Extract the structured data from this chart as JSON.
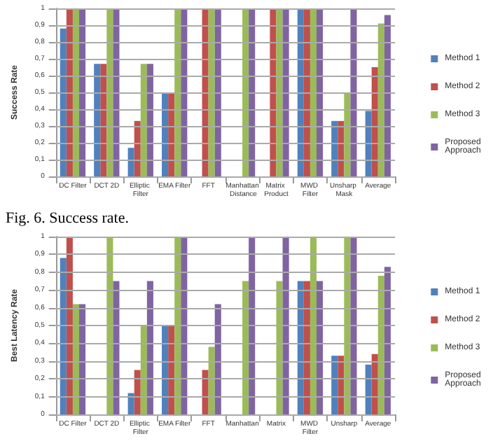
{
  "chart_data": [
    {
      "type": "bar",
      "ylabel": "Success Rate",
      "annotations": [
        "Fig. 6. Success rate."
      ],
      "categories": [
        "DC Filter",
        "DCT 2D",
        "Elliptic Filter",
        "EMA Filter",
        "FFT",
        "Manhattan Distance",
        "Matrix Product",
        "MWD Filter",
        "Unsharp Mask",
        "Average"
      ],
      "series": [
        {
          "name": "Method 1",
          "color": "#4f81bd",
          "values": [
            0.88,
            0.67,
            0.17,
            0.5,
            0,
            0,
            0,
            1,
            0.33,
            0.39
          ]
        },
        {
          "name": "Method 2",
          "color": "#c0504d",
          "values": [
            1,
            0.67,
            0.33,
            0.5,
            1,
            0,
            1,
            1,
            0.33,
            0.65
          ]
        },
        {
          "name": "Method 3",
          "color": "#9bbb59",
          "values": [
            1,
            1,
            0.67,
            1,
            1,
            1,
            1,
            1,
            0.5,
            0.91
          ]
        },
        {
          "name": "Proposed Approach",
          "color": "#8064a2",
          "values": [
            1,
            1,
            0.67,
            1,
            1,
            1,
            1,
            1,
            1,
            0.96
          ]
        }
      ],
      "ylim": [
        0,
        1
      ],
      "yticks": [
        {
          "value": 0,
          "label": "0"
        },
        {
          "value": 0.1,
          "label": "0,1"
        },
        {
          "value": 0.2,
          "label": "0,2"
        },
        {
          "value": 0.3,
          "label": "0,3"
        },
        {
          "value": 0.4,
          "label": "0,4"
        },
        {
          "value": 0.5,
          "label": "0,5"
        },
        {
          "value": 0.6,
          "label": "0,6"
        },
        {
          "value": 0.7,
          "label": "0,7"
        },
        {
          "value": 0.8,
          "label": "0,8"
        },
        {
          "value": 0.9,
          "label": "0,9"
        },
        {
          "value": 1,
          "label": "1"
        }
      ],
      "grid": "y",
      "legend": "right"
    },
    {
      "type": "bar",
      "ylabel": "Best Latency Rate",
      "categories": [
        "DC Filter",
        "DCT 2D",
        "Elliptic Filter",
        "EMA Filter",
        "FFT",
        "Manhattan",
        "Matrix",
        "MWD Filter",
        "Unsharp",
        "Average"
      ],
      "series": [
        {
          "name": "Method 1",
          "color": "#4f81bd",
          "values": [
            0.88,
            0,
            0.12,
            0.5,
            0,
            0,
            0,
            0.75,
            0.33,
            0.28
          ]
        },
        {
          "name": "Method 2",
          "color": "#c0504d",
          "values": [
            1,
            0,
            0.25,
            0.5,
            0.25,
            0,
            0,
            0.75,
            0.33,
            0.34
          ]
        },
        {
          "name": "Method 3",
          "color": "#9bbb59",
          "values": [
            0.62,
            1,
            0.5,
            1,
            0.38,
            0.75,
            0.75,
            1,
            1,
            0.78
          ]
        },
        {
          "name": "Proposed Approach",
          "color": "#8064a2",
          "values": [
            0.62,
            0.75,
            0.75,
            1,
            0.62,
            1,
            1,
            0.75,
            1,
            0.83
          ]
        }
      ],
      "ylim": [
        0,
        1
      ],
      "yticks": [
        {
          "value": 0,
          "label": "0"
        },
        {
          "value": 0.1,
          "label": "0,1"
        },
        {
          "value": 0.2,
          "label": "0,2"
        },
        {
          "value": 0.3,
          "label": "0,3"
        },
        {
          "value": 0.4,
          "label": "0,4"
        },
        {
          "value": 0.5,
          "label": "0,5"
        },
        {
          "value": 0.6,
          "label": "0,6"
        },
        {
          "value": 0.7,
          "label": "0,7"
        },
        {
          "value": 0.8,
          "label": "0,8"
        },
        {
          "value": 0.9,
          "label": "0,9"
        },
        {
          "value": 1,
          "label": "1"
        }
      ],
      "grid": "y",
      "legend": "right"
    }
  ]
}
